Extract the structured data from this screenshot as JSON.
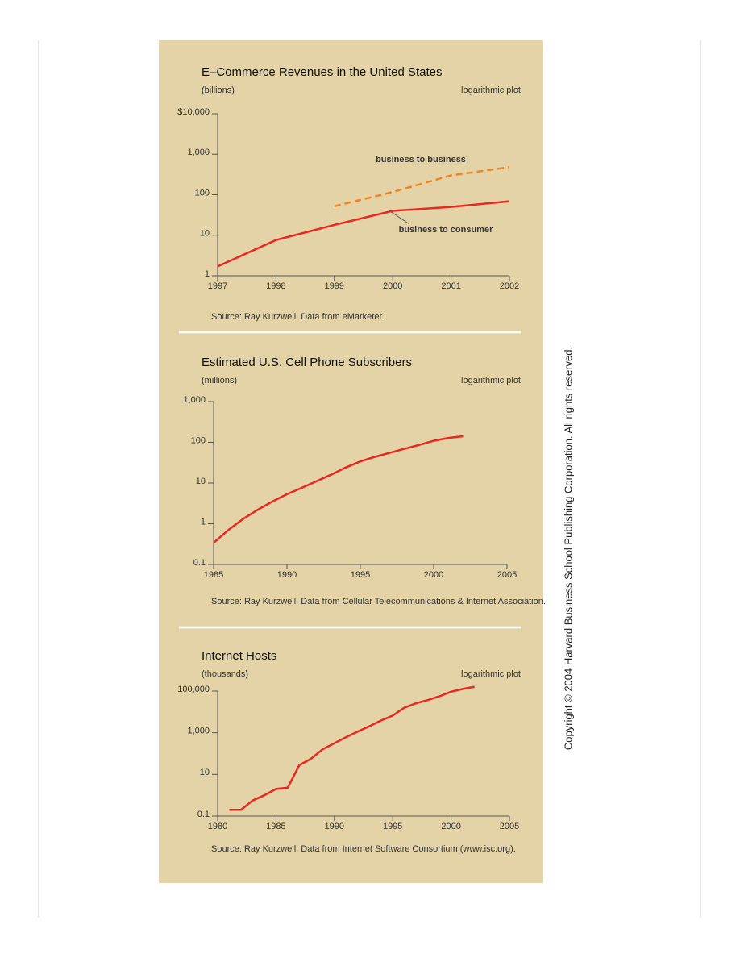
{
  "chart_data": [
    {
      "type": "line",
      "title": "E–Commerce Revenues in the United States",
      "subtitle": "(billions)",
      "note": "logarithmic plot",
      "source": "Source: Ray Kurzweil. Data from eMarketer.",
      "x": [
        1997,
        1998,
        1999,
        2000,
        2001,
        2002
      ],
      "xlim": [
        1997,
        2002
      ],
      "xticks": [
        1997,
        1998,
        1999,
        2000,
        2001,
        2002
      ],
      "ylim": [
        1,
        10000
      ],
      "yticks": [
        1,
        10,
        100,
        {
          "value": 1000,
          "label": "1,000"
        },
        {
          "value": 10000,
          "label": "$10,000"
        }
      ],
      "log_y": true,
      "series": [
        {
          "name": "business to consumer",
          "color": "#e8281e",
          "style": "solid",
          "values": [
            1.7,
            7.6,
            18,
            40,
            50,
            69
          ]
        },
        {
          "name": "business to business",
          "color": "#f58220",
          "style": "dashed",
          "values": [
            null,
            null,
            52,
            117,
            300,
            480
          ]
        }
      ]
    },
    {
      "type": "line",
      "title": "Estimated U.S. Cell Phone Subscribers",
      "subtitle": "(millions)",
      "note": "logarithmic plot",
      "source": "Source: Ray Kurzweil. Data from Cellular Telecommunications & Internet Association.",
      "x": [
        1985,
        1986,
        1987,
        1988,
        1989,
        1990,
        1991,
        1992,
        1993,
        1994,
        1995,
        1996,
        1997,
        1998,
        1999,
        2000,
        2001,
        2002
      ],
      "xlim": [
        1985,
        2005
      ],
      "xticks": [
        1985,
        1990,
        1995,
        2000,
        2005
      ],
      "ylim": [
        0.1,
        1000
      ],
      "yticks": [
        0.1,
        1,
        10,
        100,
        {
          "value": 1000,
          "label": "1,000"
        }
      ],
      "log_y": true,
      "series": [
        {
          "color": "#e8281e",
          "style": "solid",
          "values": [
            0.34,
            0.7,
            1.3,
            2.2,
            3.5,
            5.3,
            7.6,
            11,
            16,
            24,
            34,
            44,
            55,
            69,
            86,
            109,
            128,
            141
          ]
        }
      ]
    },
    {
      "type": "line",
      "title": "Internet Hosts",
      "subtitle": "(thousands)",
      "note": "logarithmic plot",
      "source": "Source: Ray Kurzweil. Data from Internet Software Consortium (www.isc.org).",
      "x": [
        1981,
        1982,
        1983,
        1984,
        1985,
        1986,
        1987,
        1988,
        1989,
        1990,
        1991,
        1992,
        1993,
        1994,
        1995,
        1996,
        1997,
        1998,
        1999,
        2000,
        2001,
        2002
      ],
      "xlim": [
        1980,
        2005
      ],
      "xticks": [
        1980,
        1985,
        1990,
        1995,
        2000,
        2005
      ],
      "ylim": [
        0.1,
        100000
      ],
      "yticks": [
        0.1,
        10,
        {
          "value": 1000,
          "label": "1,000"
        },
        {
          "value": 100000,
          "label": "100,000"
        }
      ],
      "log_y": true,
      "series": [
        {
          "color": "#e8281e",
          "style": "solid",
          "values": [
            0.2,
            0.2,
            0.56,
            1,
            2,
            2.3,
            28,
            56,
            160,
            313,
            617,
            1136,
            2056,
            3864,
            6642,
            16146,
            26053,
            36739,
            56218,
            93047,
            125888,
            162128
          ]
        }
      ]
    }
  ],
  "copyright": "Copyright © 2004 Harvard Business School Publishing Corporation. All rights reserved."
}
